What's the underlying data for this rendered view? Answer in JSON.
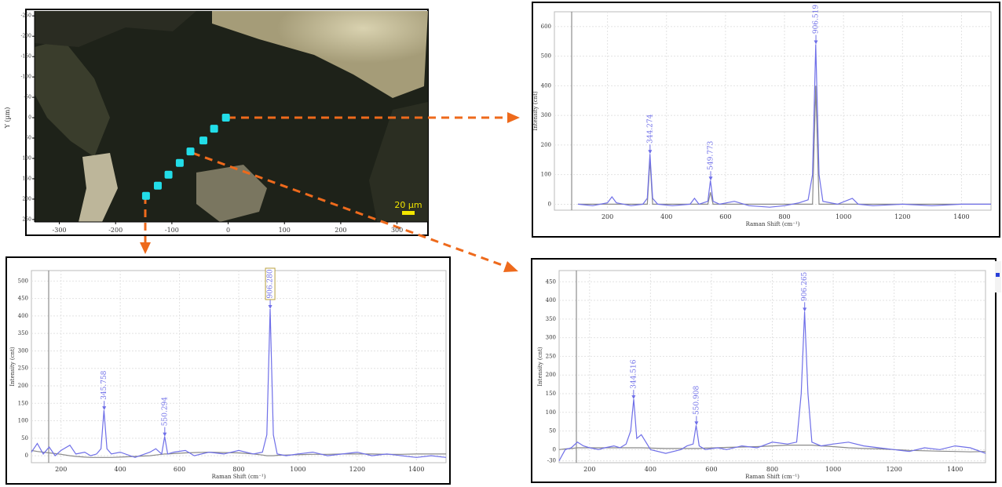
{
  "chart_data": [
    {
      "type": "scatter",
      "y_label": "Y (µm)",
      "scale_bar_label": "20 µm",
      "x": [
        -4,
        -25,
        -44,
        -67,
        -86,
        -106,
        -125,
        -146
      ],
      "y": [
        0,
        27,
        56,
        83,
        111,
        140,
        167,
        192
      ],
      "color": "#22dde8",
      "xlim": [
        -344,
        355
      ],
      "ylim": [
        -262,
        256
      ],
      "y_reversed": true,
      "xticks": [
        -300,
        -200,
        -100,
        0,
        100,
        200,
        300
      ],
      "yticks": [
        -250,
        -200,
        -150,
        -100,
        -50,
        0,
        50,
        100,
        150,
        200,
        250
      ]
    },
    {
      "type": "line",
      "x_label": "Raman Shift (cm⁻¹)",
      "y_label": "Intensity (cnt)",
      "x": [
        100,
        150,
        200,
        215,
        230,
        280,
        320,
        335,
        344,
        353,
        370,
        420,
        480,
        495,
        510,
        540,
        549,
        558,
        580,
        630,
        680,
        750,
        800,
        850,
        880,
        895,
        906,
        917,
        930,
        980,
        1030,
        1050,
        1100,
        1200,
        1300,
        1400,
        1500
      ],
      "series": [
        {
          "color": "#8a8a8a",
          "values": [
            0,
            0,
            0,
            0,
            0,
            0,
            0,
            0,
            150,
            0,
            0,
            0,
            0,
            0,
            0,
            0,
            40,
            0,
            0,
            0,
            0,
            0,
            0,
            0,
            0,
            0,
            400,
            0,
            0,
            0,
            0,
            0,
            0,
            0,
            0,
            0,
            0
          ]
        },
        {
          "color": "#6f6fe8",
          "values": [
            0,
            -5,
            5,
            25,
            5,
            -5,
            0,
            20,
            170,
            20,
            0,
            -5,
            0,
            20,
            0,
            10,
            80,
            10,
            0,
            10,
            -5,
            -10,
            -5,
            5,
            15,
            100,
            540,
            100,
            10,
            0,
            20,
            0,
            -5,
            0,
            -5,
            0,
            0
          ]
        }
      ],
      "annotations": [
        {
          "text": "344.274",
          "x": 344.274,
          "y": 170
        },
        {
          "text": "549.773",
          "x": 549.773,
          "y": 80
        },
        {
          "text": "906.519",
          "x": 906.519,
          "y": 540
        }
      ],
      "xlim": [
        20,
        1500
      ],
      "ylim": [
        -20,
        650
      ],
      "xticks": [
        200,
        400,
        600,
        800,
        1000,
        1200,
        1400
      ],
      "yticks": [
        0,
        100,
        200,
        300,
        400,
        500,
        600
      ],
      "grid": true
    },
    {
      "type": "line",
      "x_label": "Raman Shift (cm⁻¹)",
      "y_label": "Intensity (cnt)",
      "x": [
        100,
        120,
        140,
        160,
        180,
        200,
        230,
        250,
        280,
        300,
        320,
        335,
        345,
        355,
        370,
        400,
        450,
        500,
        520,
        540,
        550,
        560,
        580,
        620,
        650,
        700,
        750,
        800,
        850,
        880,
        895,
        906,
        917,
        930,
        960,
        1000,
        1050,
        1100,
        1150,
        1200,
        1250,
        1300,
        1350,
        1400,
        1450,
        1500
      ],
      "series": [
        {
          "color": "#8a8a8a",
          "values": [
            15,
            12,
            10,
            8,
            6,
            4,
            0,
            -2,
            -4,
            -5,
            -5,
            -5,
            -5,
            -5,
            -5,
            -4,
            -2,
            0,
            2,
            4,
            5,
            5,
            6,
            8,
            9,
            10,
            9,
            8,
            5,
            2,
            0,
            0,
            0,
            1,
            2,
            3,
            4,
            4,
            5,
            5,
            5,
            4,
            4,
            5,
            5,
            5
          ]
        },
        {
          "color": "#6f6fe8",
          "values": [
            10,
            35,
            5,
            25,
            0,
            15,
            30,
            5,
            10,
            0,
            5,
            20,
            130,
            20,
            5,
            10,
            -5,
            10,
            20,
            5,
            55,
            5,
            10,
            15,
            0,
            10,
            5,
            15,
            5,
            10,
            60,
            420,
            60,
            5,
            0,
            5,
            10,
            0,
            5,
            10,
            0,
            5,
            0,
            -5,
            0,
            -5
          ]
        }
      ],
      "annotations": [
        {
          "text": "345.758",
          "x": 345.758,
          "y": 130
        },
        {
          "text": "550.294",
          "x": 550.294,
          "y": 55
        },
        {
          "text": "906.280",
          "x": 906.28,
          "y": 420,
          "boxed": true
        }
      ],
      "xlim": [
        100,
        1500
      ],
      "ylim": [
        -20,
        530
      ],
      "xticks": [
        200,
        400,
        600,
        800,
        1000,
        1200,
        1400
      ],
      "yticks": [
        0,
        50,
        100,
        150,
        200,
        250,
        300,
        350,
        400,
        450,
        500
      ],
      "grid": true
    },
    {
      "type": "line",
      "x_label": "Raman Shift (cm⁻¹)",
      "y_label": "Intensity (cnt)",
      "x": [
        100,
        120,
        140,
        160,
        180,
        200,
        230,
        250,
        280,
        300,
        320,
        335,
        345,
        355,
        370,
        400,
        450,
        500,
        520,
        540,
        550,
        560,
        580,
        620,
        650,
        700,
        750,
        800,
        850,
        880,
        895,
        906,
        917,
        930,
        960,
        1000,
        1050,
        1100,
        1150,
        1200,
        1250,
        1300,
        1350,
        1400,
        1450,
        1500
      ],
      "series": [
        {
          "color": "#8a8a8a",
          "values": [
            0,
            2,
            3,
            5,
            5,
            5,
            5,
            5,
            5,
            5,
            5,
            5,
            5,
            5,
            5,
            4,
            3,
            3,
            3,
            3,
            3,
            3,
            4,
            5,
            6,
            7,
            8,
            10,
            12,
            12,
            12,
            12,
            12,
            12,
            10,
            8,
            5,
            3,
            2,
            0,
            -2,
            -3,
            -4,
            -5,
            -6,
            -5
          ]
        },
        {
          "color": "#6f6fe8",
          "values": [
            -30,
            0,
            5,
            20,
            10,
            5,
            0,
            5,
            10,
            5,
            15,
            50,
            135,
            30,
            40,
            0,
            -10,
            0,
            10,
            15,
            65,
            10,
            0,
            5,
            0,
            10,
            5,
            20,
            15,
            20,
            150,
            370,
            150,
            20,
            10,
            15,
            20,
            10,
            5,
            0,
            -5,
            5,
            0,
            10,
            5,
            -10
          ]
        }
      ],
      "annotations": [
        {
          "text": "344.516",
          "x": 344.516,
          "y": 135
        },
        {
          "text": "550.908",
          "x": 550.908,
          "y": 65
        },
        {
          "text": "906.265",
          "x": 906.265,
          "y": 370
        }
      ],
      "xlim": [
        100,
        1500
      ],
      "ylim": [
        -35,
        480
      ],
      "xticks": [
        200,
        400,
        600,
        800,
        1000,
        1200,
        1400
      ],
      "yticks": [
        -30,
        0,
        50,
        100,
        150,
        200,
        250,
        300,
        350,
        400,
        450
      ],
      "grid": true
    }
  ]
}
